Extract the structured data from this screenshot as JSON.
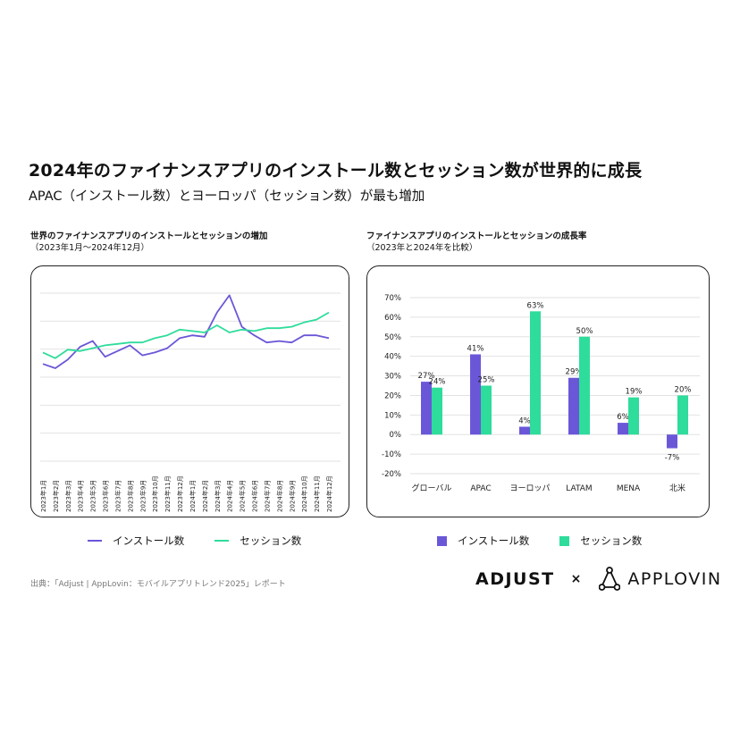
{
  "headline": "2024年のファイナンスアプリのインストール数とセッション数が世界的に成長",
  "subheadline": "APAC（インストール数）とヨーロッパ（セッション数）が最も増加",
  "colors": {
    "installs": "#6a57d8",
    "sessions": "#2edc9b",
    "grid": "#e2e2e2"
  },
  "source": "出典：「Adjust | AppLovin：モバイルアプリトレンド2025」レポート",
  "logos": {
    "adjust": "ADJUST",
    "separator": "×",
    "applovin": "APPLOVIN"
  },
  "chart_data": [
    {
      "type": "line",
      "title": "世界のファイナンスアプリのインストールとセッションの増加",
      "subtitle": "（2023年1月〜2024年12月）",
      "x": [
        "2023年1月",
        "2023年2月",
        "2023年3月",
        "2023年4月",
        "2023年5月",
        "2023年6月",
        "2023年7月",
        "2023年8月",
        "2023年9月",
        "2023年10月",
        "2023年11月",
        "2023年12月",
        "2024年1月",
        "2024年2月",
        "2024年3月",
        "2024年4月",
        "2024年5月",
        "2024年6月",
        "2024年7月",
        "2024年8月",
        "2024年9月",
        "2024年10月",
        "2024年11月",
        "2024年12月"
      ],
      "series": [
        {
          "name": "インストール数",
          "values": [
            88,
            85,
            91,
            100,
            104,
            93,
            97,
            101,
            94,
            96,
            99,
            106,
            108,
            107,
            124,
            136,
            114,
            108,
            103,
            104,
            103,
            108,
            108,
            106
          ]
        },
        {
          "name": "セッション数",
          "values": [
            96,
            92,
            98,
            97,
            99,
            101,
            102,
            103,
            103,
            106,
            108,
            112,
            111,
            110,
            115,
            110,
            112,
            111,
            113,
            113,
            114,
            117,
            119,
            124
          ]
        }
      ],
      "grid": true,
      "legend": "bottom"
    },
    {
      "type": "bar",
      "title": "ファイナンスアプリのインストールとセッションの成長率",
      "subtitle": "（2023年と2024年を比較）",
      "categories": [
        "グローバル",
        "APAC",
        "ヨーロッパ",
        "LATAM",
        "MENA",
        "北米"
      ],
      "series": [
        {
          "name": "インストール数",
          "values": [
            27,
            41,
            4,
            29,
            6,
            -7
          ],
          "labels": [
            "27%",
            "41%",
            "4%",
            "29%",
            "6%",
            "-7%"
          ]
        },
        {
          "name": "セッション数",
          "values": [
            24,
            25,
            63,
            50,
            19,
            20
          ],
          "labels": [
            "24%",
            "25%",
            "63%",
            "50%",
            "19%",
            "20%"
          ]
        }
      ],
      "ylim": [
        -20,
        70
      ],
      "yticks": [
        "-20%",
        "-10%",
        "0%",
        "10%",
        "20%",
        "30%",
        "40%",
        "50%",
        "60%",
        "70%"
      ],
      "grid": true,
      "legend": "bottom"
    }
  ]
}
